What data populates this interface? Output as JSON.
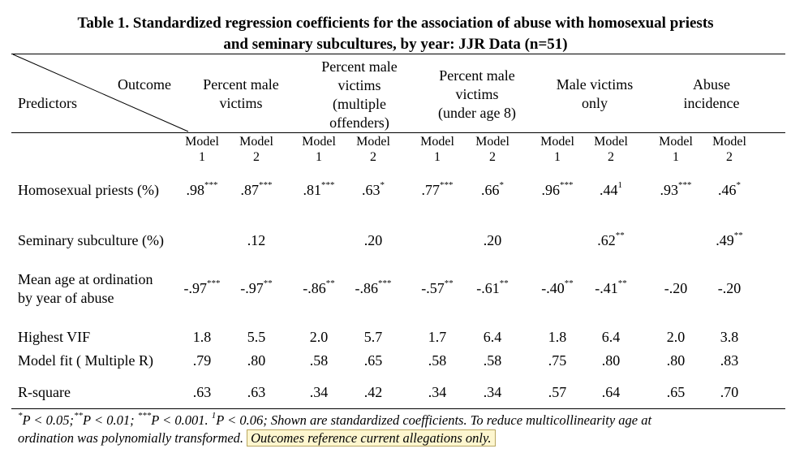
{
  "table": {
    "title_line1": "Table 1. Standardized regression coefficients for the association of abuse with homosexual priests",
    "title_line2": "and seminary subcultures, by year: JJR Data (n=51)",
    "corner_outcome": "Outcome",
    "corner_predictors": "Predictors",
    "outcomes": [
      {
        "lines": [
          "Percent male",
          "victims"
        ]
      },
      {
        "lines": [
          "Percent male",
          "victims",
          "(multiple",
          "offenders)"
        ]
      },
      {
        "lines": [
          "Percent male",
          "victims",
          "(under age 8)"
        ]
      },
      {
        "lines": [
          "Male victims",
          "only"
        ]
      },
      {
        "lines": [
          "Abuse",
          "incidence"
        ]
      }
    ],
    "model_word": "Model",
    "model_nums": [
      "1",
      "2"
    ],
    "rows": [
      {
        "label": [
          "Homosexual priests (%)"
        ],
        "values": [
          ".98",
          ".87",
          ".81",
          ".63",
          ".77",
          ".66",
          ".96",
          ".44",
          ".93",
          ".46"
        ],
        "sups": [
          "***",
          "***",
          "***",
          "*",
          "***",
          "*",
          "***",
          "1",
          "***",
          "*"
        ]
      },
      {
        "label": [
          "Seminary subculture (%)"
        ],
        "values": [
          "",
          ".12",
          "",
          ".20",
          "",
          ".20",
          "",
          ".62",
          "",
          ".49"
        ],
        "sups": [
          "",
          "",
          "",
          "",
          "",
          "",
          "",
          "**",
          "",
          "**"
        ]
      },
      {
        "label": [
          "Mean age at ordination",
          "by year of abuse"
        ],
        "values": [
          "-.97",
          "-.97",
          "-.86",
          "-.86",
          "-.57",
          "-.61",
          "-.40",
          "-.41",
          "-.20",
          "-.20"
        ],
        "sups": [
          "***",
          "**",
          "**",
          "***",
          "**",
          "**",
          "**",
          "**",
          "",
          ""
        ]
      },
      {
        "label": [
          "Highest VIF"
        ],
        "values": [
          "1.8",
          "5.5",
          "2.0",
          "5.7",
          "1.7",
          "6.4",
          "1.8",
          "6.4",
          "2.0",
          "3.8"
        ],
        "sups": [
          "",
          "",
          "",
          "",
          "",
          "",
          "",
          "",
          "",
          ""
        ]
      },
      {
        "label": [
          "Model fit ( Multiple R)"
        ],
        "values": [
          ".79",
          ".80",
          ".58",
          ".65",
          ".58",
          ".58",
          ".75",
          ".80",
          ".80",
          ".83"
        ],
        "sups": [
          "",
          "",
          "",
          "",
          "",
          "",
          "",
          "",
          "",
          ""
        ]
      },
      {
        "label": [
          "R-square"
        ],
        "values": [
          ".63",
          ".63",
          ".34",
          ".42",
          ".34",
          ".34",
          ".57",
          ".64",
          ".65",
          ".70"
        ],
        "sups": [
          "",
          "",
          "",
          "",
          "",
          "",
          "",
          "",
          "",
          ""
        ]
      }
    ],
    "footnote": {
      "sup1": "*",
      "p1": "P < 0.05;",
      "sup2": "**",
      "p2": "P < 0.01;",
      "sup3": "***",
      "p3": "P < 0.001.",
      "sup4": "1",
      "p4": "P < 0.06;  Shown are standardized coefficients.  To reduce multicollinearity age at",
      "line2": "ordination was polynomially transformed.",
      "highlight": "Outcomes reference current allegations only."
    }
  }
}
